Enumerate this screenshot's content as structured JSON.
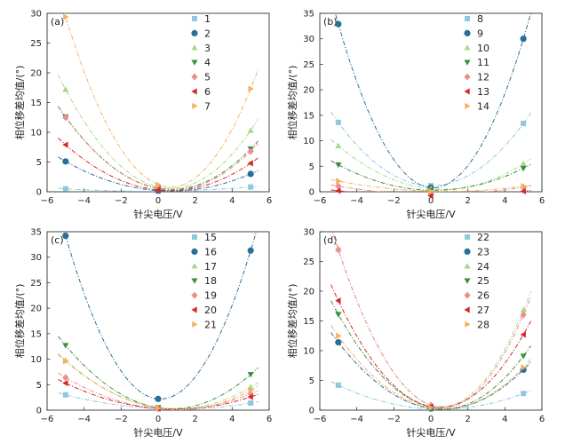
{
  "chart_data": [
    {
      "type": "scatter",
      "panel_label": "(a)",
      "xlabel": "针尖电压/V",
      "ylabel": "相位移差均值/(°)",
      "xlim": [
        -6,
        6
      ],
      "ylim": [
        0,
        30
      ],
      "xticks": [
        -6,
        -4,
        -2,
        0,
        2,
        4,
        6
      ],
      "yticks": [
        0,
        5,
        10,
        15,
        20,
        25,
        30
      ],
      "x": [
        -5,
        0,
        5
      ],
      "fit_curves": true,
      "legend_position": "top-right",
      "series": [
        {
          "name": "1",
          "color": "#8ec7e0",
          "marker": "square",
          "values": [
            0.5,
            0.1,
            0.8
          ]
        },
        {
          "name": "2",
          "color": "#2a6f97",
          "marker": "circle",
          "values": [
            5.1,
            0.2,
            3.0
          ]
        },
        {
          "name": "3",
          "color": "#a8d88a",
          "marker": "triangle-up",
          "values": [
            17.2,
            0.8,
            10.3
          ]
        },
        {
          "name": "4",
          "color": "#3b8f3b",
          "marker": "triangle-down",
          "values": [
            12.6,
            0.6,
            7.2
          ]
        },
        {
          "name": "5",
          "color": "#ec8e8e",
          "marker": "diamond",
          "values": [
            12.5,
            0.5,
            6.8
          ]
        },
        {
          "name": "6",
          "color": "#d62728",
          "marker": "triangle-left",
          "values": [
            7.9,
            0.3,
            4.8
          ]
        },
        {
          "name": "7",
          "color": "#f5b060",
          "marker": "triangle-right",
          "values": [
            29.4,
            1.2,
            17.3
          ]
        }
      ]
    },
    {
      "type": "scatter",
      "panel_label": "(b)",
      "xlabel": "针尖电压/V",
      "ylabel": "相位移差均值/(°)",
      "xlim": [
        -6,
        6
      ],
      "ylim": [
        0,
        35
      ],
      "xticks": [
        -6,
        -4,
        -2,
        0,
        2,
        4,
        6
      ],
      "yticks": [
        0,
        5,
        10,
        15,
        20,
        25,
        30,
        35
      ],
      "x": [
        -5,
        0,
        5
      ],
      "fit_curves": true,
      "legend_position": "top-right",
      "series": [
        {
          "name": "8",
          "color": "#8ec7e0",
          "marker": "square",
          "values": [
            13.6,
            1.2,
            13.4
          ]
        },
        {
          "name": "9",
          "color": "#2a6f97",
          "marker": "circle",
          "values": [
            32.9,
            0.8,
            30.0
          ]
        },
        {
          "name": "10",
          "color": "#a8d88a",
          "marker": "triangle-up",
          "values": [
            9.0,
            0.6,
            5.5
          ]
        },
        {
          "name": "11",
          "color": "#3b8f3b",
          "marker": "triangle-down",
          "values": [
            5.3,
            0.3,
            4.6
          ]
        },
        {
          "name": "12",
          "color": "#ec8e8e",
          "marker": "diamond",
          "values": [
            1.1,
            -0.5,
            0.9
          ]
        },
        {
          "name": "13",
          "color": "#d62728",
          "marker": "triangle-left",
          "values": [
            0.2,
            -0.8,
            0.1
          ]
        },
        {
          "name": "14",
          "color": "#f5b060",
          "marker": "triangle-right",
          "values": [
            2.1,
            0.1,
            1.1
          ]
        }
      ]
    },
    {
      "type": "scatter",
      "panel_label": "(c)",
      "xlabel": "针尖电压/V",
      "ylabel": "相位移差均值/(°)",
      "xlim": [
        -6,
        6
      ],
      "ylim": [
        0,
        35
      ],
      "xticks": [
        -6,
        -4,
        -2,
        0,
        2,
        4,
        6
      ],
      "yticks": [
        0,
        5,
        10,
        15,
        20,
        25,
        30,
        35
      ],
      "x": [
        -5,
        0,
        5
      ],
      "fit_curves": true,
      "legend_position": "top-right",
      "series": [
        {
          "name": "15",
          "color": "#8ec7e0",
          "marker": "square",
          "values": [
            3.0,
            0.3,
            1.4
          ]
        },
        {
          "name": "16",
          "color": "#2a6f97",
          "marker": "circle",
          "values": [
            34.2,
            2.2,
            31.3
          ]
        },
        {
          "name": "17",
          "color": "#a8d88a",
          "marker": "triangle-up",
          "values": [
            9.8,
            0.5,
            4.5
          ]
        },
        {
          "name": "18",
          "color": "#3b8f3b",
          "marker": "triangle-down",
          "values": [
            12.7,
            0.5,
            7.0
          ]
        },
        {
          "name": "19",
          "color": "#ec8e8e",
          "marker": "diamond",
          "values": [
            6.4,
            0.3,
            3.2
          ]
        },
        {
          "name": "20",
          "color": "#d62728",
          "marker": "triangle-left",
          "values": [
            5.3,
            0.3,
            2.6
          ]
        },
        {
          "name": "21",
          "color": "#f5b060",
          "marker": "triangle-right",
          "values": [
            9.6,
            0.4,
            3.9
          ]
        }
      ]
    },
    {
      "type": "scatter",
      "panel_label": "(d)",
      "xlabel": "针尖电压/V",
      "ylabel": "相位移差均值/(°)",
      "xlim": [
        -6,
        6
      ],
      "ylim": [
        0,
        30
      ],
      "xticks": [
        -6,
        -4,
        -2,
        0,
        2,
        4,
        6
      ],
      "yticks": [
        0,
        5,
        10,
        15,
        20,
        25,
        30
      ],
      "x": [
        -5,
        0,
        5
      ],
      "fit_curves": true,
      "legend_position": "top-right",
      "series": [
        {
          "name": "22",
          "color": "#8ec7e0",
          "marker": "square",
          "values": [
            4.2,
            0.2,
            2.8
          ]
        },
        {
          "name": "23",
          "color": "#2a6f97",
          "marker": "circle",
          "values": [
            11.4,
            0.3,
            6.8
          ]
        },
        {
          "name": "24",
          "color": "#a8d88a",
          "marker": "triangle-up",
          "values": [
            27.0,
            0.9,
            16.8
          ]
        },
        {
          "name": "25",
          "color": "#3b8f3b",
          "marker": "triangle-down",
          "values": [
            16.1,
            0.5,
            9.1
          ]
        },
        {
          "name": "26",
          "color": "#ec8e8e",
          "marker": "diamond",
          "values": [
            27.0,
            0.8,
            16.0
          ]
        },
        {
          "name": "27",
          "color": "#d62728",
          "marker": "triangle-left",
          "values": [
            18.4,
            0.6,
            12.7
          ]
        },
        {
          "name": "28",
          "color": "#f5b060",
          "marker": "triangle-right",
          "values": [
            12.5,
            0.4,
            7.2
          ]
        }
      ]
    }
  ]
}
